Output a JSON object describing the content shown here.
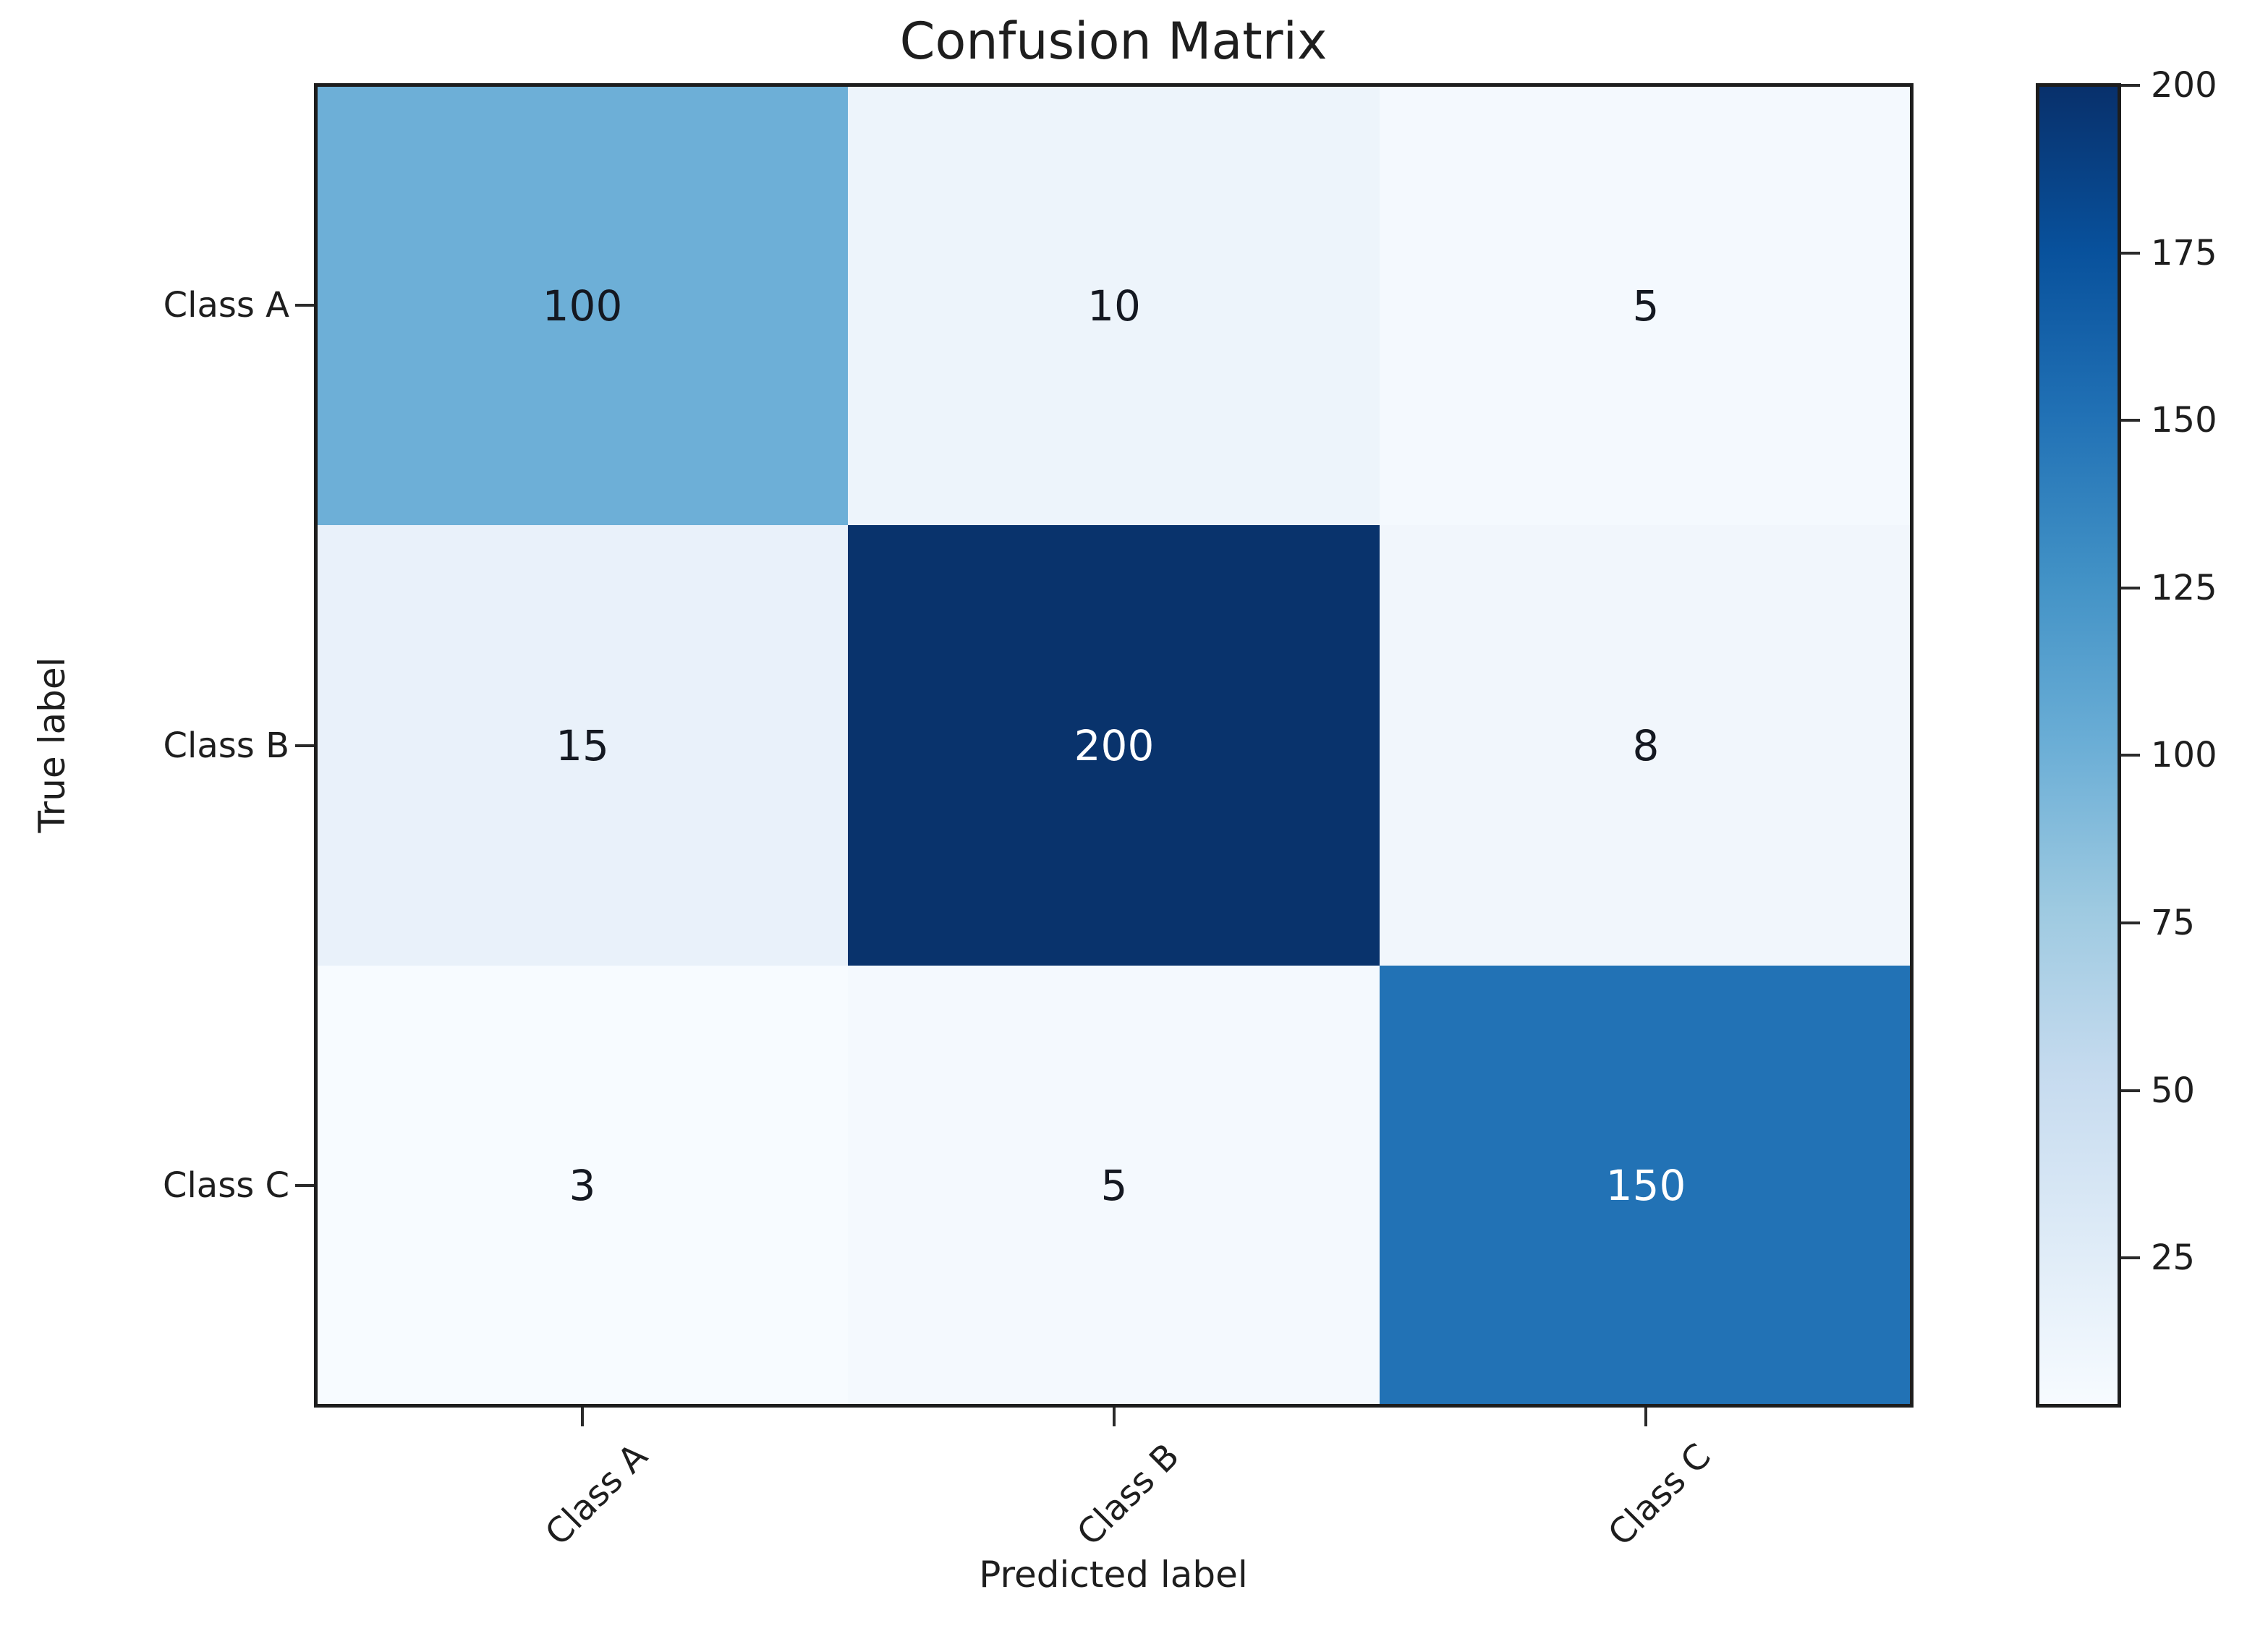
{
  "chart_data": {
    "type": "heatmap",
    "title": "Confusion Matrix",
    "xlabel": "Predicted label",
    "ylabel": "True label",
    "x_categories": [
      "Class A",
      "Class B",
      "Class C"
    ],
    "y_categories": [
      "Class A",
      "Class B",
      "Class C"
    ],
    "matrix": [
      [
        100,
        10,
        5
      ],
      [
        15,
        200,
        8
      ],
      [
        3,
        5,
        150
      ]
    ],
    "vmin": 3,
    "vmax": 200,
    "colormap": "Blues",
    "legend_position": "right-colorbar",
    "grid": false,
    "colorbar_ticks": [
      200,
      175,
      150,
      125,
      100,
      75,
      50,
      25
    ],
    "cell_colors": [
      [
        "#6dafd7",
        "#edf4fb",
        "#f4f9fe"
      ],
      [
        "#e9f1fa",
        "#09336c",
        "#f1f6fc"
      ],
      [
        "#f7fbff",
        "#f4f9fe",
        "#2272b5"
      ]
    ],
    "cell_text_colors": [
      [
        "#141821",
        "#141821",
        "#141821"
      ],
      [
        "#141821",
        "#ffffff",
        "#141821"
      ],
      [
        "#141821",
        "#141821",
        "#ffffff"
      ]
    ],
    "colormap_stops": [
      {
        "pos": 0,
        "color": "#08306b"
      },
      {
        "pos": 12.5,
        "color": "#08519c"
      },
      {
        "pos": 25,
        "color": "#2171b5"
      },
      {
        "pos": 37.5,
        "color": "#4292c6"
      },
      {
        "pos": 50,
        "color": "#6baed6"
      },
      {
        "pos": 62.5,
        "color": "#9ecae1"
      },
      {
        "pos": 75,
        "color": "#c6dbef"
      },
      {
        "pos": 87.5,
        "color": "#deebf7"
      },
      {
        "pos": 100,
        "color": "#f7fbff"
      }
    ],
    "colors": {
      "spine": "#1d1d1d",
      "tick": "#2a2a2a",
      "text": "#1e1e1e",
      "background": "#ffffff"
    }
  }
}
